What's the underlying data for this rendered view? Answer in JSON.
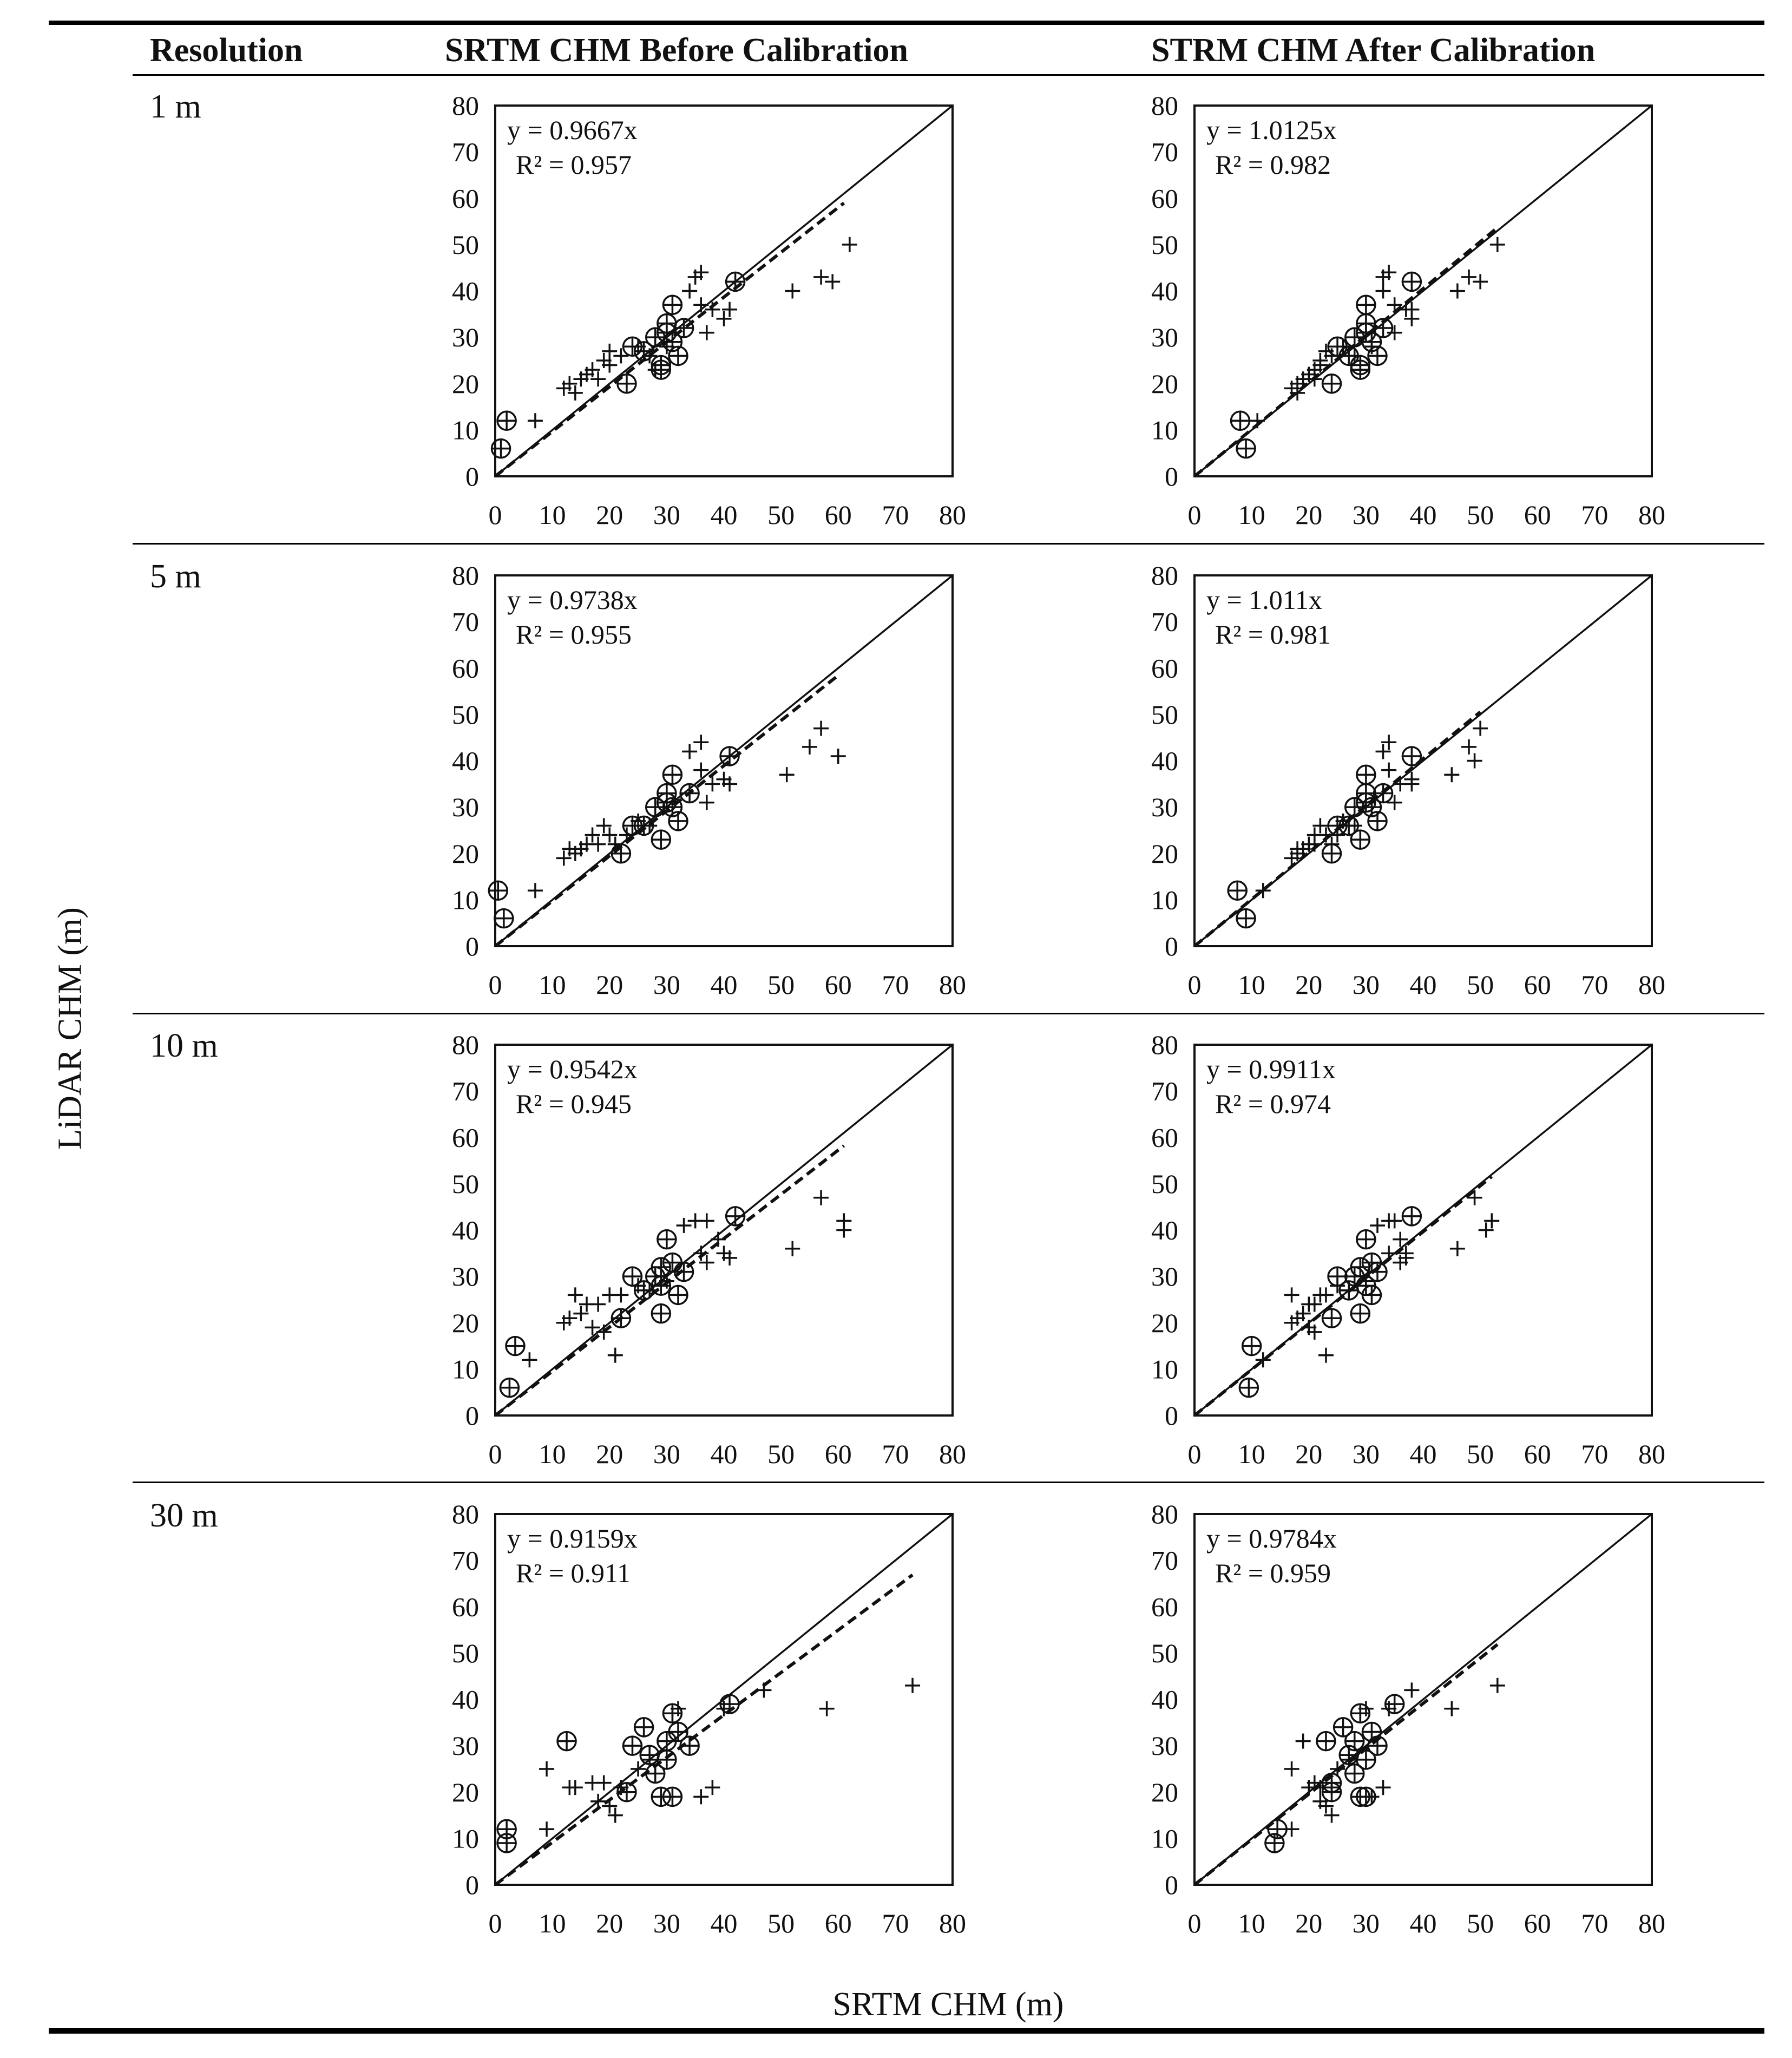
{
  "headers": {
    "resolution": "Resolution",
    "before": "SRTM CHM Before Calibration",
    "after": "STRM CHM After Calibration"
  },
  "axis_labels": {
    "y": "LiDAR CHM (m)",
    "x": "SRTM CHM (m)"
  },
  "resolutions": [
    "1 m",
    "5 m",
    "10 m",
    "30 m"
  ],
  "chart_data": [
    {
      "type": "scatter",
      "resolution": "1 m",
      "column": "before",
      "equation": "y = 0.9667x",
      "r2": "R² = 0.957",
      "slope": 0.9667,
      "xlim": [
        0,
        80
      ],
      "ylim": [
        0,
        80
      ],
      "ticks": [
        0,
        10,
        20,
        30,
        40,
        50,
        60,
        70,
        80
      ],
      "reference_line": "1:1",
      "fit_extent": [
        0,
        61
      ],
      "circled": [
        [
          1,
          6
        ],
        [
          2,
          12
        ],
        [
          23,
          20
        ],
        [
          24,
          28
        ],
        [
          26,
          27
        ],
        [
          28,
          30
        ],
        [
          29,
          24
        ],
        [
          30,
          33
        ],
        [
          31,
          29
        ],
        [
          31,
          37
        ],
        [
          32,
          26
        ],
        [
          33,
          32
        ],
        [
          42,
          42
        ],
        [
          29,
          23
        ],
        [
          30,
          31
        ]
      ],
      "plus": [
        [
          7,
          12
        ],
        [
          12,
          19
        ],
        [
          13,
          20
        ],
        [
          14,
          18
        ],
        [
          15,
          21
        ],
        [
          16,
          22
        ],
        [
          17,
          23
        ],
        [
          18,
          21
        ],
        [
          19,
          25
        ],
        [
          20,
          24
        ],
        [
          20,
          27
        ],
        [
          22,
          26
        ],
        [
          25,
          28
        ],
        [
          27,
          26
        ],
        [
          28,
          23
        ],
        [
          30,
          28
        ],
        [
          34,
          40
        ],
        [
          35,
          43
        ],
        [
          36,
          44
        ],
        [
          36,
          37
        ],
        [
          37,
          31
        ],
        [
          38,
          36
        ],
        [
          40,
          34
        ],
        [
          41,
          36
        ],
        [
          52,
          40
        ],
        [
          57,
          43
        ],
        [
          59,
          42
        ],
        [
          62,
          50
        ]
      ]
    },
    {
      "type": "scatter",
      "resolution": "1 m",
      "column": "after",
      "equation": "y = 1.0125x",
      "r2": "R² = 0.982",
      "slope": 1.0125,
      "xlim": [
        0,
        80
      ],
      "ylim": [
        0,
        80
      ],
      "ticks": [
        0,
        10,
        20,
        30,
        40,
        50,
        60,
        70,
        80
      ],
      "reference_line": "1:1",
      "fit_extent": [
        0,
        53
      ],
      "circled": [
        [
          8,
          12
        ],
        [
          9,
          6
        ],
        [
          24,
          20
        ],
        [
          25,
          28
        ],
        [
          27,
          26
        ],
        [
          28,
          30
        ],
        [
          29,
          24
        ],
        [
          30,
          33
        ],
        [
          30,
          37
        ],
        [
          31,
          29
        ],
        [
          32,
          26
        ],
        [
          33,
          32
        ],
        [
          38,
          42
        ],
        [
          29,
          23
        ],
        [
          30,
          31
        ]
      ],
      "plus": [
        [
          11,
          12
        ],
        [
          17,
          19
        ],
        [
          18,
          20
        ],
        [
          18,
          18
        ],
        [
          19,
          21
        ],
        [
          20,
          22
        ],
        [
          21,
          23
        ],
        [
          21,
          21
        ],
        [
          22,
          25
        ],
        [
          22,
          24
        ],
        [
          23,
          27
        ],
        [
          24,
          26
        ],
        [
          26,
          28
        ],
        [
          28,
          26
        ],
        [
          29,
          23
        ],
        [
          31,
          28
        ],
        [
          33,
          40
        ],
        [
          33,
          43
        ],
        [
          34,
          44
        ],
        [
          35,
          37
        ],
        [
          35,
          31
        ],
        [
          37,
          36
        ],
        [
          38,
          34
        ],
        [
          38,
          36
        ],
        [
          46,
          40
        ],
        [
          48,
          43
        ],
        [
          50,
          42
        ],
        [
          53,
          50
        ]
      ]
    },
    {
      "type": "scatter",
      "resolution": "5 m",
      "column": "before",
      "equation": "y = 0.9738x",
      "r2": "R² = 0.955",
      "slope": 0.9738,
      "xlim": [
        0,
        80
      ],
      "ylim": [
        0,
        80
      ],
      "ticks": [
        0,
        10,
        20,
        30,
        40,
        50,
        60,
        70,
        80
      ],
      "reference_line": "1:1",
      "fit_extent": [
        0,
        60
      ],
      "circled": [
        [
          0.5,
          12
        ],
        [
          1.5,
          6
        ],
        [
          22,
          20
        ],
        [
          24,
          26
        ],
        [
          26,
          26
        ],
        [
          28,
          30
        ],
        [
          29,
          23
        ],
        [
          30,
          33
        ],
        [
          31,
          30
        ],
        [
          31,
          37
        ],
        [
          32,
          27
        ],
        [
          34,
          33
        ],
        [
          41,
          41
        ],
        [
          30,
          31
        ]
      ],
      "plus": [
        [
          7,
          12
        ],
        [
          12,
          19
        ],
        [
          13,
          21
        ],
        [
          14,
          20
        ],
        [
          15,
          21
        ],
        [
          16,
          22
        ],
        [
          17,
          24
        ],
        [
          18,
          22
        ],
        [
          19,
          26
        ],
        [
          20,
          24
        ],
        [
          21,
          22
        ],
        [
          23,
          24
        ],
        [
          25,
          27
        ],
        [
          27,
          26
        ],
        [
          34,
          42
        ],
        [
          36,
          44
        ],
        [
          36,
          38
        ],
        [
          37,
          31
        ],
        [
          38,
          35
        ],
        [
          40,
          36
        ],
        [
          41,
          35
        ],
        [
          51,
          37
        ],
        [
          55,
          43
        ],
        [
          57,
          47
        ],
        [
          60,
          41
        ]
      ]
    },
    {
      "type": "scatter",
      "resolution": "5 m",
      "column": "after",
      "equation": "y = 1.011x",
      "r2": "R² = 0.981",
      "slope": 1.011,
      "xlim": [
        0,
        80
      ],
      "ylim": [
        0,
        80
      ],
      "ticks": [
        0,
        10,
        20,
        30,
        40,
        50,
        60,
        70,
        80
      ],
      "reference_line": "1:1",
      "fit_extent": [
        0,
        50
      ],
      "circled": [
        [
          7.5,
          12
        ],
        [
          9,
          6
        ],
        [
          24,
          20
        ],
        [
          25,
          26
        ],
        [
          27,
          26
        ],
        [
          28,
          30
        ],
        [
          29,
          23
        ],
        [
          30,
          33
        ],
        [
          30,
          37
        ],
        [
          31,
          30
        ],
        [
          32,
          27
        ],
        [
          33,
          33
        ],
        [
          38,
          41
        ],
        [
          30,
          31
        ]
      ],
      "plus": [
        [
          12,
          12
        ],
        [
          17,
          19
        ],
        [
          18,
          21
        ],
        [
          18,
          20
        ],
        [
          19,
          21
        ],
        [
          20,
          22
        ],
        [
          21,
          24
        ],
        [
          21,
          22
        ],
        [
          22,
          26
        ],
        [
          23,
          24
        ],
        [
          24,
          22
        ],
        [
          25,
          24
        ],
        [
          26,
          27
        ],
        [
          28,
          26
        ],
        [
          33,
          42
        ],
        [
          34,
          44
        ],
        [
          34,
          38
        ],
        [
          35,
          31
        ],
        [
          36,
          35
        ],
        [
          38,
          36
        ],
        [
          38,
          35
        ],
        [
          45,
          37
        ],
        [
          48,
          43
        ],
        [
          49,
          40
        ],
        [
          50,
          47
        ]
      ]
    },
    {
      "type": "scatter",
      "resolution": "10 m",
      "column": "before",
      "equation": "y = 0.9542x",
      "r2": "R² = 0.945",
      "slope": 0.9542,
      "xlim": [
        0,
        80
      ],
      "ylim": [
        0,
        80
      ],
      "ticks": [
        0,
        10,
        20,
        30,
        40,
        50,
        60,
        70,
        80
      ],
      "reference_line": "1:1",
      "fit_extent": [
        0,
        61
      ],
      "circled": [
        [
          2.5,
          6
        ],
        [
          3.5,
          15
        ],
        [
          22,
          21
        ],
        [
          24,
          30
        ],
        [
          26,
          27
        ],
        [
          28,
          30
        ],
        [
          29,
          22
        ],
        [
          29,
          32
        ],
        [
          30,
          38
        ],
        [
          31,
          33
        ],
        [
          32,
          26
        ],
        [
          33,
          31
        ],
        [
          42,
          43
        ],
        [
          29,
          28
        ]
      ],
      "plus": [
        [
          6,
          12
        ],
        [
          12,
          20
        ],
        [
          13,
          21
        ],
        [
          14,
          26
        ],
        [
          15,
          22
        ],
        [
          16,
          24
        ],
        [
          17,
          19
        ],
        [
          18,
          24
        ],
        [
          19,
          18
        ],
        [
          20,
          26
        ],
        [
          21,
          13
        ],
        [
          22,
          26
        ],
        [
          25,
          28
        ],
        [
          27,
          27
        ],
        [
          30,
          29
        ],
        [
          33,
          41
        ],
        [
          35,
          42
        ],
        [
          37,
          42
        ],
        [
          36,
          35
        ],
        [
          37,
          33
        ],
        [
          39,
          38
        ],
        [
          40,
          35
        ],
        [
          41,
          34
        ],
        [
          52,
          36
        ],
        [
          57,
          47
        ],
        [
          61,
          42
        ],
        [
          61,
          40
        ]
      ]
    },
    {
      "type": "scatter",
      "resolution": "10 m",
      "column": "after",
      "equation": "y = 0.9911x",
      "r2": "R² = 0.974",
      "slope": 0.9911,
      "xlim": [
        0,
        80
      ],
      "ylim": [
        0,
        80
      ],
      "ticks": [
        0,
        10,
        20,
        30,
        40,
        50,
        60,
        70,
        80
      ],
      "reference_line": "1:1",
      "fit_extent": [
        0,
        52
      ],
      "circled": [
        [
          9.5,
          6
        ],
        [
          10,
          15
        ],
        [
          24,
          21
        ],
        [
          25,
          30
        ],
        [
          27,
          27
        ],
        [
          28,
          30
        ],
        [
          29,
          22
        ],
        [
          29,
          32
        ],
        [
          30,
          38
        ],
        [
          31,
          33
        ],
        [
          31,
          26
        ],
        [
          32,
          31
        ],
        [
          38,
          43
        ],
        [
          30,
          28
        ]
      ],
      "plus": [
        [
          12,
          12
        ],
        [
          17,
          20
        ],
        [
          18,
          21
        ],
        [
          17,
          26
        ],
        [
          19,
          22
        ],
        [
          20,
          24
        ],
        [
          20,
          19
        ],
        [
          21,
          24
        ],
        [
          21,
          18
        ],
        [
          22,
          26
        ],
        [
          23,
          13
        ],
        [
          23,
          26
        ],
        [
          25,
          28
        ],
        [
          27,
          27
        ],
        [
          30,
          29
        ],
        [
          32,
          41
        ],
        [
          34,
          42
        ],
        [
          35,
          42
        ],
        [
          34,
          35
        ],
        [
          36,
          33
        ],
        [
          36,
          38
        ],
        [
          37,
          35
        ],
        [
          37,
          34
        ],
        [
          46,
          36
        ],
        [
          49,
          47
        ],
        [
          51,
          40
        ],
        [
          52,
          42
        ]
      ]
    },
    {
      "type": "scatter",
      "resolution": "30 m",
      "column": "before",
      "equation": "y = 0.9159x",
      "r2": "R² = 0.911",
      "slope": 0.9159,
      "xlim": [
        0,
        80
      ],
      "ylim": [
        0,
        80
      ],
      "ticks": [
        0,
        10,
        20,
        30,
        40,
        50,
        60,
        70,
        80
      ],
      "reference_line": "1:1",
      "fit_extent": [
        0,
        73
      ],
      "circled": [
        [
          2,
          9
        ],
        [
          2,
          12
        ],
        [
          12.5,
          31
        ],
        [
          23,
          20
        ],
        [
          24,
          30
        ],
        [
          26,
          34
        ],
        [
          27,
          28
        ],
        [
          28,
          24
        ],
        [
          29,
          19
        ],
        [
          30,
          27
        ],
        [
          30,
          31
        ],
        [
          31,
          37
        ],
        [
          31,
          19
        ],
        [
          32,
          33
        ],
        [
          34,
          30
        ],
        [
          41,
          39
        ]
      ],
      "plus": [
        [
          9,
          25
        ],
        [
          9,
          12
        ],
        [
          13,
          21
        ],
        [
          14,
          21
        ],
        [
          17,
          22
        ],
        [
          18,
          18
        ],
        [
          19,
          22
        ],
        [
          20,
          17
        ],
        [
          21,
          15
        ],
        [
          22,
          21
        ],
        [
          25,
          25
        ],
        [
          27,
          27
        ],
        [
          31,
          37
        ],
        [
          32,
          38
        ],
        [
          36,
          19
        ],
        [
          38,
          21
        ],
        [
          40,
          38
        ],
        [
          47,
          42
        ],
        [
          58,
          38
        ],
        [
          73,
          43
        ]
      ]
    },
    {
      "type": "scatter",
      "resolution": "30 m",
      "column": "after",
      "equation": "y = 0.9784x",
      "r2": "R² = 0.959",
      "slope": 0.9784,
      "xlim": [
        0,
        80
      ],
      "ylim": [
        0,
        80
      ],
      "ticks": [
        0,
        10,
        20,
        30,
        40,
        50,
        60,
        70,
        80
      ],
      "reference_line": "1:1",
      "fit_extent": [
        0,
        53
      ],
      "circled": [
        [
          14,
          9
        ],
        [
          14.5,
          12
        ],
        [
          23,
          31
        ],
        [
          24,
          20
        ],
        [
          24,
          22
        ],
        [
          26,
          34
        ],
        [
          27,
          28
        ],
        [
          28,
          24
        ],
        [
          28,
          31
        ],
        [
          29,
          19
        ],
        [
          29,
          37
        ],
        [
          30,
          27
        ],
        [
          30,
          19
        ],
        [
          31,
          33
        ],
        [
          32,
          30
        ],
        [
          35,
          39
        ]
      ],
      "plus": [
        [
          17,
          25
        ],
        [
          17,
          12
        ],
        [
          19,
          31
        ],
        [
          20,
          21
        ],
        [
          21,
          22
        ],
        [
          22,
          18
        ],
        [
          22,
          21
        ],
        [
          23,
          17
        ],
        [
          24,
          15
        ],
        [
          24,
          21
        ],
        [
          25,
          25
        ],
        [
          27,
          27
        ],
        [
          29,
          37
        ],
        [
          30,
          38
        ],
        [
          31,
          19
        ],
        [
          33,
          21
        ],
        [
          34,
          38
        ],
        [
          38,
          42
        ],
        [
          45,
          38
        ],
        [
          53,
          43
        ]
      ]
    }
  ]
}
